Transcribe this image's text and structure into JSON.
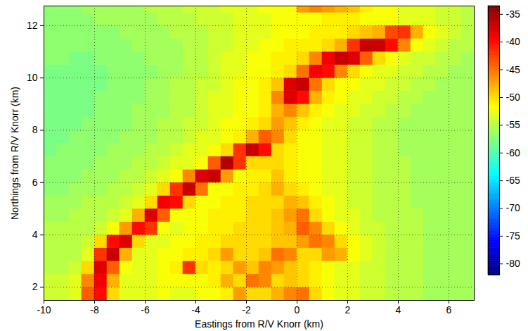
{
  "chart_data": {
    "type": "heatmap",
    "x_label": "Eastings from R/V Knorr (km)",
    "y_label": "Northings from R/V Knorr (km)",
    "xlim": [
      -10,
      7
    ],
    "xticks": [
      -10,
      -8,
      -6,
      -4,
      -2,
      0,
      2,
      4,
      6
    ],
    "ylim": [
      1.5,
      12.75
    ],
    "yticks": [
      2,
      4,
      6,
      8,
      10,
      12
    ],
    "grid": true,
    "colorbar_range": [
      -82,
      -33.5
    ],
    "colorbar_ticks": [
      -35,
      -40,
      -45,
      -50,
      -55,
      -60,
      -65,
      -70,
      -75,
      -80
    ],
    "x": [
      -9.75,
      -9.25,
      -8.75,
      -8.25,
      -7.75,
      -7.25,
      -6.75,
      -6.25,
      -5.75,
      -5.25,
      -4.75,
      -4.25,
      -3.75,
      -3.25,
      -2.75,
      -2.25,
      -1.75,
      -1.25,
      -0.75,
      -0.25,
      0.25,
      0.75,
      1.25,
      1.75,
      2.25,
      2.75,
      3.25,
      3.75,
      4.25,
      4.75,
      5.25,
      5.75,
      6.25,
      6.75
    ],
    "y": [
      1.75,
      2.25,
      2.75,
      3.25,
      3.75,
      4.25,
      4.75,
      5.25,
      5.75,
      6.25,
      6.75,
      7.25,
      7.75,
      8.25,
      8.75,
      9.25,
      9.75,
      10.25,
      10.75,
      11.25,
      11.75,
      12.25,
      12.75
    ],
    "z": [
      [
        -54,
        -54,
        -53,
        -44,
        -40,
        -50,
        -53,
        -53,
        -53,
        -52,
        -53,
        -53,
        -52,
        -52,
        -51,
        -47,
        -50,
        -50,
        -48,
        -46,
        -45,
        -50,
        -52,
        -53,
        -53,
        -54,
        -54,
        -55,
        -55,
        -55,
        -56,
        -56,
        -56,
        -56
      ],
      [
        -54,
        -54,
        -53,
        -46,
        -39,
        -48,
        -53,
        -53,
        -53,
        -52,
        -52,
        -52,
        -52,
        -51,
        -48,
        -50,
        -45,
        -46,
        -50,
        -49,
        -50,
        -51,
        -52,
        -53,
        -53,
        -54,
        -54,
        -55,
        -55,
        -55,
        -56,
        -56,
        -56,
        -56
      ],
      [
        -55,
        -55,
        -54,
        -50,
        -38,
        -44,
        -52,
        -53,
        -53,
        -52,
        -51,
        -42,
        -50,
        -51,
        -50,
        -47,
        -49,
        -46,
        -47,
        -49,
        -50,
        -51,
        -52,
        -53,
        -53,
        -54,
        -54,
        -55,
        -55,
        -55,
        -56,
        -56,
        -56,
        -56
      ],
      [
        -55,
        -55,
        -55,
        -53,
        -42,
        -37,
        -48,
        -53,
        -53,
        -52,
        -52,
        -51,
        -51,
        -50,
        -47,
        -50,
        -50,
        -49,
        -45,
        -46,
        -50,
        -50,
        -47,
        -48,
        -52,
        -53,
        -54,
        -55,
        -55,
        -55,
        -56,
        -56,
        -56,
        -56
      ],
      [
        -55,
        -55,
        -55,
        -54,
        -50,
        -40,
        -38,
        -50,
        -53,
        -53,
        -52,
        -52,
        -51,
        -51,
        -50,
        -50,
        -50,
        -50,
        -49,
        -49,
        -47,
        -45,
        -46,
        -50,
        -52,
        -53,
        -54,
        -55,
        -55,
        -55,
        -56,
        -56,
        -56,
        -56
      ],
      [
        -55,
        -55,
        -55,
        -55,
        -54,
        -52,
        -47,
        -40,
        -42,
        -52,
        -53,
        -52,
        -52,
        -51,
        -51,
        -50,
        -50,
        -50,
        -49,
        -48,
        -44,
        -46,
        -50,
        -52,
        -53,
        -54,
        -54,
        -55,
        -55,
        -55,
        -56,
        -56,
        -56,
        -56
      ],
      [
        -56,
        -56,
        -55,
        -55,
        -55,
        -54,
        -53,
        -48,
        -38,
        -44,
        -52,
        -52,
        -52,
        -51,
        -51,
        -51,
        -50,
        -50,
        -49,
        -47,
        -45,
        -50,
        -52,
        -53,
        -53,
        -54,
        -55,
        -55,
        -55,
        -55,
        -56,
        -56,
        -56,
        -56
      ],
      [
        -56,
        -56,
        -56,
        -55,
        -55,
        -55,
        -54,
        -53,
        -50,
        -39,
        -40,
        -50,
        -52,
        -52,
        -51,
        -51,
        -50,
        -50,
        -50,
        -48,
        -49,
        -51,
        -52,
        -53,
        -54,
        -54,
        -55,
        -55,
        -55,
        -56,
        -56,
        -56,
        -56,
        -56
      ],
      [
        -57,
        -57,
        -56,
        -56,
        -56,
        -55,
        -55,
        -54,
        -53,
        -50,
        -42,
        -37,
        -45,
        -52,
        -52,
        -51,
        -51,
        -50,
        -48,
        -50,
        -51,
        -52,
        -53,
        -53,
        -54,
        -54,
        -55,
        -55,
        -55,
        -56,
        -56,
        -56,
        -56,
        -56
      ],
      [
        -57,
        -57,
        -57,
        -56,
        -56,
        -56,
        -55,
        -55,
        -54,
        -53,
        -52,
        -46,
        -38,
        -37,
        -47,
        -52,
        -51,
        -51,
        -49,
        -51,
        -52,
        -52,
        -53,
        -53,
        -54,
        -54,
        -55,
        -55,
        -55,
        -56,
        -56,
        -56,
        -56,
        -56
      ],
      [
        -57,
        -57,
        -57,
        -57,
        -56,
        -56,
        -56,
        -55,
        -55,
        -54,
        -53,
        -53,
        -52,
        -44,
        -36,
        -42,
        -50,
        -50,
        -50,
        -51,
        -52,
        -52,
        -53,
        -53,
        -54,
        -54,
        -55,
        -55,
        -55,
        -56,
        -56,
        -56,
        -56,
        -56
      ],
      [
        -58,
        -57,
        -57,
        -57,
        -57,
        -56,
        -56,
        -56,
        -55,
        -55,
        -54,
        -53,
        -53,
        -52,
        -50,
        -42,
        -37,
        -40,
        -50,
        -51,
        -52,
        -52,
        -53,
        -53,
        -54,
        -54,
        -55,
        -55,
        -56,
        -56,
        -56,
        -56,
        -56,
        -56
      ],
      [
        -58,
        -58,
        -57,
        -57,
        -57,
        -57,
        -56,
        -56,
        -56,
        -55,
        -55,
        -54,
        -53,
        -53,
        -52,
        -51,
        -48,
        -44,
        -46,
        -50,
        -52,
        -52,
        -53,
        -53,
        -54,
        -54,
        -55,
        -55,
        -56,
        -56,
        -56,
        -56,
        -56,
        -56
      ],
      [
        -58,
        -58,
        -58,
        -57,
        -57,
        -57,
        -57,
        -56,
        -56,
        -55,
        -55,
        -54,
        -54,
        -53,
        -52,
        -52,
        -51,
        -50,
        -47,
        -49,
        -51,
        -52,
        -53,
        -53,
        -54,
        -54,
        -55,
        -55,
        -56,
        -56,
        -56,
        -56,
        -56,
        -56
      ],
      [
        -58,
        -58,
        -58,
        -58,
        -57,
        -57,
        -57,
        -56,
        -56,
        -56,
        -55,
        -55,
        -54,
        -53,
        -53,
        -52,
        -52,
        -51,
        -48,
        -46,
        -49,
        -51,
        -52,
        -53,
        -53,
        -54,
        -54,
        -55,
        -55,
        -56,
        -56,
        -56,
        -56,
        -56
      ],
      [
        -58,
        -58,
        -58,
        -58,
        -57,
        -57,
        -57,
        -57,
        -56,
        -56,
        -55,
        -55,
        -54,
        -53,
        -53,
        -52,
        -52,
        -51,
        -46,
        -38,
        -40,
        -48,
        -51,
        -52,
        -53,
        -53,
        -54,
        -54,
        -55,
        -55,
        -56,
        -56,
        -56,
        -56
      ],
      [
        -58,
        -58,
        -58,
        -58,
        -58,
        -57,
        -57,
        -57,
        -56,
        -56,
        -55,
        -55,
        -54,
        -54,
        -53,
        -52,
        -52,
        -51,
        -49,
        -38,
        -37,
        -45,
        -50,
        -52,
        -52,
        -53,
        -53,
        -54,
        -54,
        -55,
        -55,
        -56,
        -56,
        -56
      ],
      [
        -58,
        -58,
        -58,
        -58,
        -58,
        -57,
        -57,
        -57,
        -57,
        -56,
        -56,
        -55,
        -55,
        -54,
        -53,
        -53,
        -52,
        -52,
        -51,
        -50,
        -45,
        -39,
        -40,
        -46,
        -50,
        -52,
        -53,
        -53,
        -54,
        -54,
        -55,
        -55,
        -56,
        -56
      ],
      [
        -57,
        -57,
        -58,
        -58,
        -57,
        -57,
        -57,
        -57,
        -56,
        -56,
        -56,
        -55,
        -55,
        -54,
        -53,
        -53,
        -52,
        -52,
        -51,
        -51,
        -50,
        -46,
        -39,
        -37,
        -38,
        -44,
        -50,
        -52,
        -53,
        -54,
        -54,
        -55,
        -55,
        -56
      ],
      [
        -57,
        -57,
        -57,
        -57,
        -57,
        -57,
        -57,
        -56,
        -56,
        -56,
        -56,
        -55,
        -55,
        -54,
        -54,
        -53,
        -53,
        -52,
        -52,
        -51,
        -51,
        -51,
        -50,
        -48,
        -42,
        -37,
        -37,
        -40,
        -46,
        -52,
        -53,
        -54,
        -55,
        -55
      ],
      [
        -57,
        -57,
        -57,
        -57,
        -57,
        -57,
        -56,
        -56,
        -56,
        -56,
        -55,
        -55,
        -55,
        -54,
        -54,
        -53,
        -53,
        -53,
        -52,
        -52,
        -52,
        -51,
        -51,
        -51,
        -50,
        -49,
        -48,
        -43,
        -42,
        -48,
        -52,
        -53,
        -54,
        -55
      ],
      [
        -57,
        -57,
        -57,
        -57,
        -56,
        -56,
        -56,
        -56,
        -56,
        -55,
        -55,
        -55,
        -54,
        -54,
        -54,
        -53,
        -53,
        -53,
        -52,
        -52,
        -52,
        -52,
        -51,
        -51,
        -51,
        -52,
        -52,
        -52,
        -53,
        -53,
        -53,
        -54,
        -54,
        -55
      ],
      [
        -57,
        -57,
        -57,
        -56,
        -56,
        -56,
        -56,
        -56,
        -55,
        -55,
        -55,
        -54,
        -54,
        -54,
        -53,
        -53,
        -53,
        -52,
        -52,
        -52,
        -47,
        -46,
        -47,
        -48,
        -49,
        -51,
        -52,
        -52,
        -53,
        -53,
        -53,
        -54,
        -54,
        -55
      ]
    ]
  }
}
